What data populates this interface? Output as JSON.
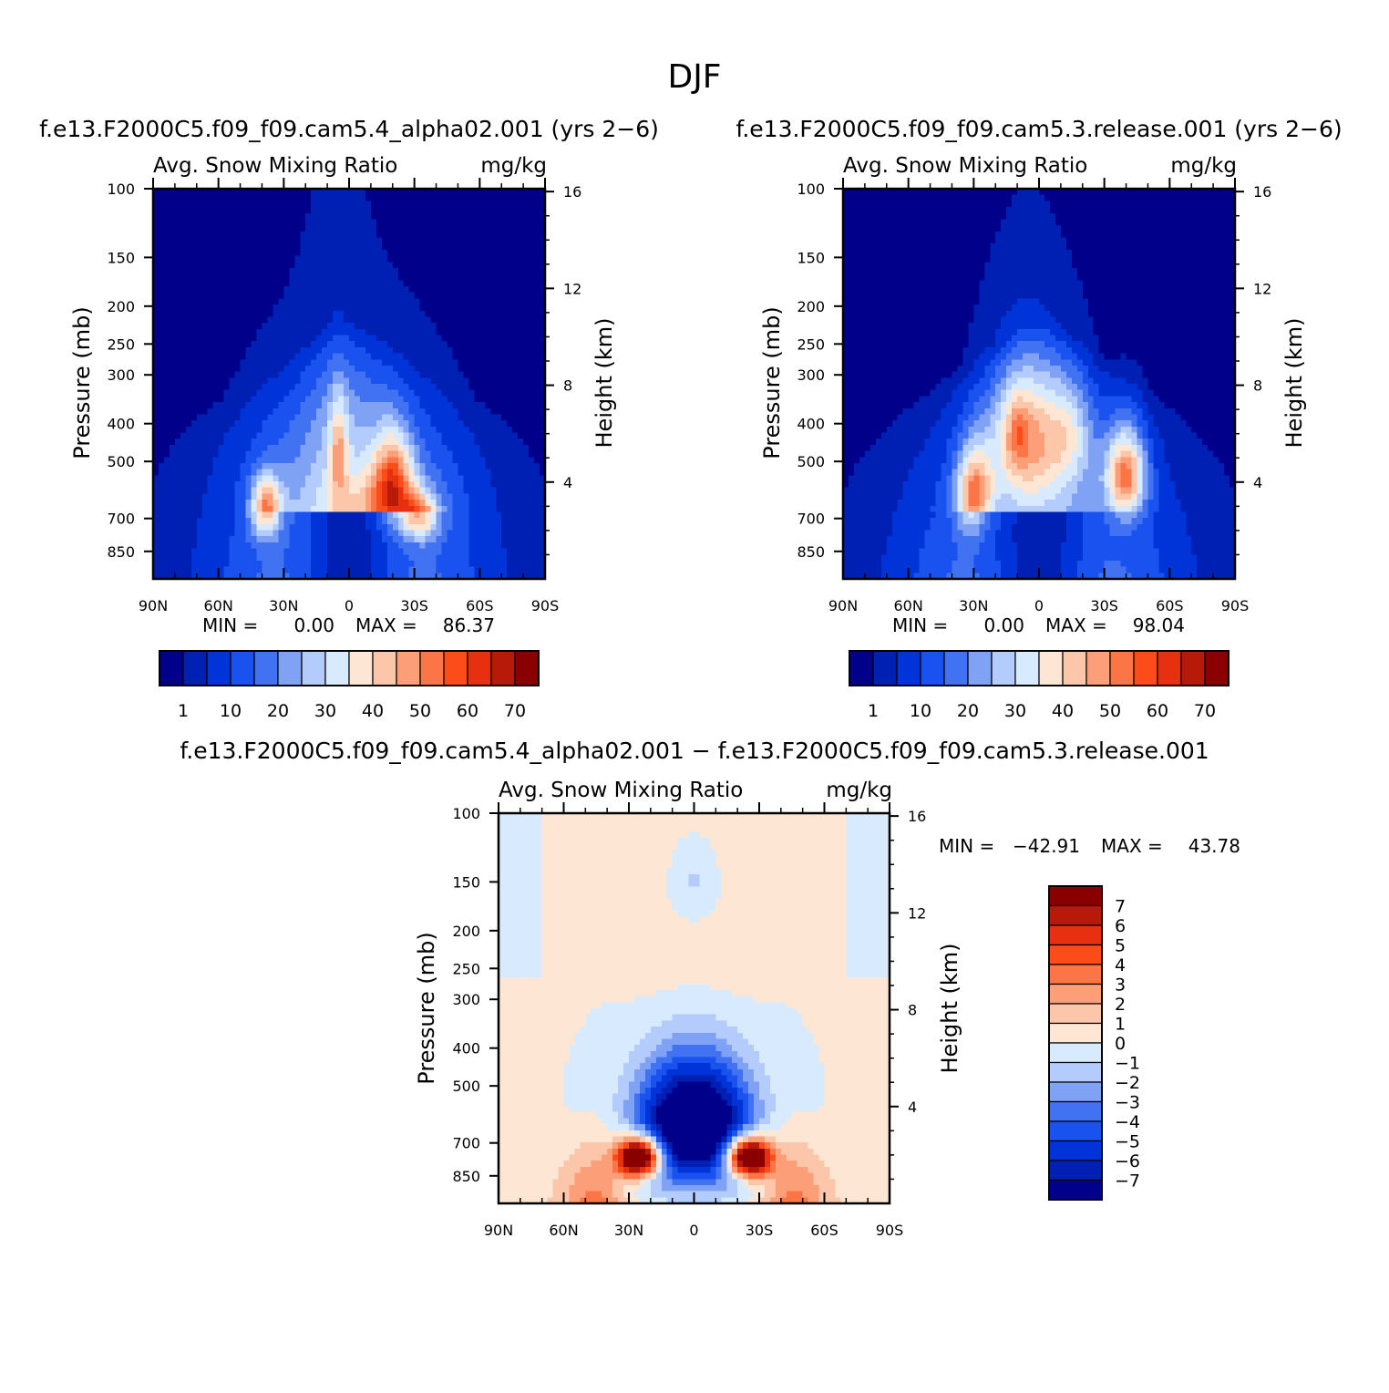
{
  "page_title": "DJF",
  "chart_data": [
    {
      "type": "heatmap",
      "id": "model-a",
      "case_title": "f.e13.F2000C5.f09_f09.cam5.4_alpha02.001 (yrs 2−6)",
      "title": "Avg. Snow Mixing Ratio",
      "units": "mg/kg",
      "ylabel": "Pressure (mb)",
      "y2label": "Height (km)",
      "x_ticks": [
        "90N",
        "60N",
        "30N",
        "0",
        "30S",
        "60S",
        "90S"
      ],
      "y_ticks": [
        "100",
        "150",
        "200",
        "250",
        "300",
        "400",
        "500",
        "700",
        "850"
      ],
      "y2_ticks": [
        "16",
        "12",
        "8",
        "4"
      ],
      "ylim": [
        1000,
        100
      ],
      "stats": {
        "min_label": "MIN =",
        "min": "0.00",
        "max_label": "MAX =",
        "max": "86.37"
      },
      "colorbar_ticks": [
        "1",
        "10",
        "20",
        "30",
        "40",
        "50",
        "60",
        "70"
      ],
      "blobs": [
        {
          "lat": -13,
          "p": 660,
          "sx": 26,
          "sy": 120,
          "v": 16
        },
        {
          "lat": 5,
          "p": 360,
          "sx": 14,
          "sy": 200,
          "v": 5
        },
        {
          "lat": 0,
          "p": 500,
          "sx": 48,
          "sy": 260,
          "v": 6
        },
        {
          "lat": 38,
          "p": 660,
          "sx": 7,
          "sy": 120,
          "v": 36
        },
        {
          "lat": -20,
          "p": 560,
          "sx": 9,
          "sy": 150,
          "v": 34
        },
        {
          "lat": -32,
          "p": 700,
          "sx": 8,
          "sy": 90,
          "v": 32
        },
        {
          "lat": 5,
          "p": 470,
          "sx": 4,
          "sy": 140,
          "v": 20
        }
      ],
      "colors": [
        "#00008a",
        "#0020b4",
        "#0034d8",
        "#1a52ef",
        "#4072f2",
        "#80a2f5",
        "#b3ccfb",
        "#d8eafd",
        "#fee6d4",
        "#fcc6aa",
        "#fc9e78",
        "#fc7546",
        "#fc4c1a",
        "#e63010",
        "#b81a0a",
        "#8a0000"
      ]
    },
    {
      "type": "heatmap",
      "id": "model-b",
      "case_title": "f.e13.F2000C5.f09_f09.cam5.3.release.001 (yrs 2−6)",
      "title": "Avg. Snow Mixing Ratio",
      "units": "mg/kg",
      "ylabel": "Pressure (mb)",
      "y2label": "Height (km)",
      "x_ticks": [
        "90N",
        "60N",
        "30N",
        "0",
        "30S",
        "60S",
        "90S"
      ],
      "y_ticks": [
        "100",
        "150",
        "200",
        "250",
        "300",
        "400",
        "500",
        "700",
        "850"
      ],
      "y2_ticks": [
        "16",
        "12",
        "8",
        "4"
      ],
      "ylim": [
        1000,
        100
      ],
      "stats": {
        "min_label": "MIN =",
        "min": "0.00",
        "max_label": "MAX =",
        "max": "98.04"
      },
      "colorbar_ticks": [
        "1",
        "10",
        "20",
        "30",
        "40",
        "50",
        "60",
        "70"
      ],
      "blobs": [
        {
          "lat": 5,
          "p": 430,
          "sx": 18,
          "sy": 180,
          "v": 30
        },
        {
          "lat": -40,
          "p": 540,
          "sx": 9,
          "sy": 140,
          "v": 42
        },
        {
          "lat": 30,
          "p": 600,
          "sx": 8,
          "sy": 150,
          "v": 36
        },
        {
          "lat": -15,
          "p": 420,
          "sx": 10,
          "sy": 130,
          "v": 14
        },
        {
          "lat": 10,
          "p": 420,
          "sx": 5,
          "sy": 90,
          "v": 12
        }
      ],
      "colors": [
        "#00008a",
        "#0020b4",
        "#0034d8",
        "#1a52ef",
        "#4072f2",
        "#80a2f5",
        "#b3ccfb",
        "#d8eafd",
        "#fee6d4",
        "#fcc6aa",
        "#fc9e78",
        "#fc7546",
        "#fc4c1a",
        "#e63010",
        "#b81a0a",
        "#8a0000"
      ]
    },
    {
      "type": "heatmap",
      "id": "difference",
      "case_title": "f.e13.F2000C5.f09_f09.cam5.4_alpha02.001 − f.e13.F2000C5.f09_f09.cam5.3.release.001",
      "title": "Avg. Snow Mixing Ratio",
      "units": "mg/kg",
      "ylabel": "Pressure (mb)",
      "y2label": "Height (km)",
      "x_ticks": [
        "90N",
        "60N",
        "30N",
        "0",
        "30S",
        "60S",
        "90S"
      ],
      "y_ticks": [
        "100",
        "150",
        "200",
        "250",
        "300",
        "400",
        "500",
        "700",
        "850"
      ],
      "y2_ticks": [
        "16",
        "12",
        "8",
        "4"
      ],
      "ylim": [
        1000,
        100
      ],
      "stats": {
        "min_label": "MIN =",
        "min": "−42.91",
        "max_label": "MAX =",
        "max": "43.78"
      },
      "colorbar_ticks": [
        "7",
        "6",
        "5",
        "4",
        "3",
        "2",
        "1",
        "0",
        "−1",
        "−2",
        "−3",
        "−4",
        "−5",
        "−6",
        "−7"
      ],
      "colors": [
        "#8a0000",
        "#b81a0a",
        "#e63010",
        "#fc4c1a",
        "#fc7546",
        "#fc9e78",
        "#fcc6aa",
        "#fee6d4",
        "#d8eafd",
        "#b3ccfb",
        "#80a2f5",
        "#4072f2",
        "#1a52ef",
        "#0034d8",
        "#0020b4",
        "#00008a"
      ]
    }
  ]
}
